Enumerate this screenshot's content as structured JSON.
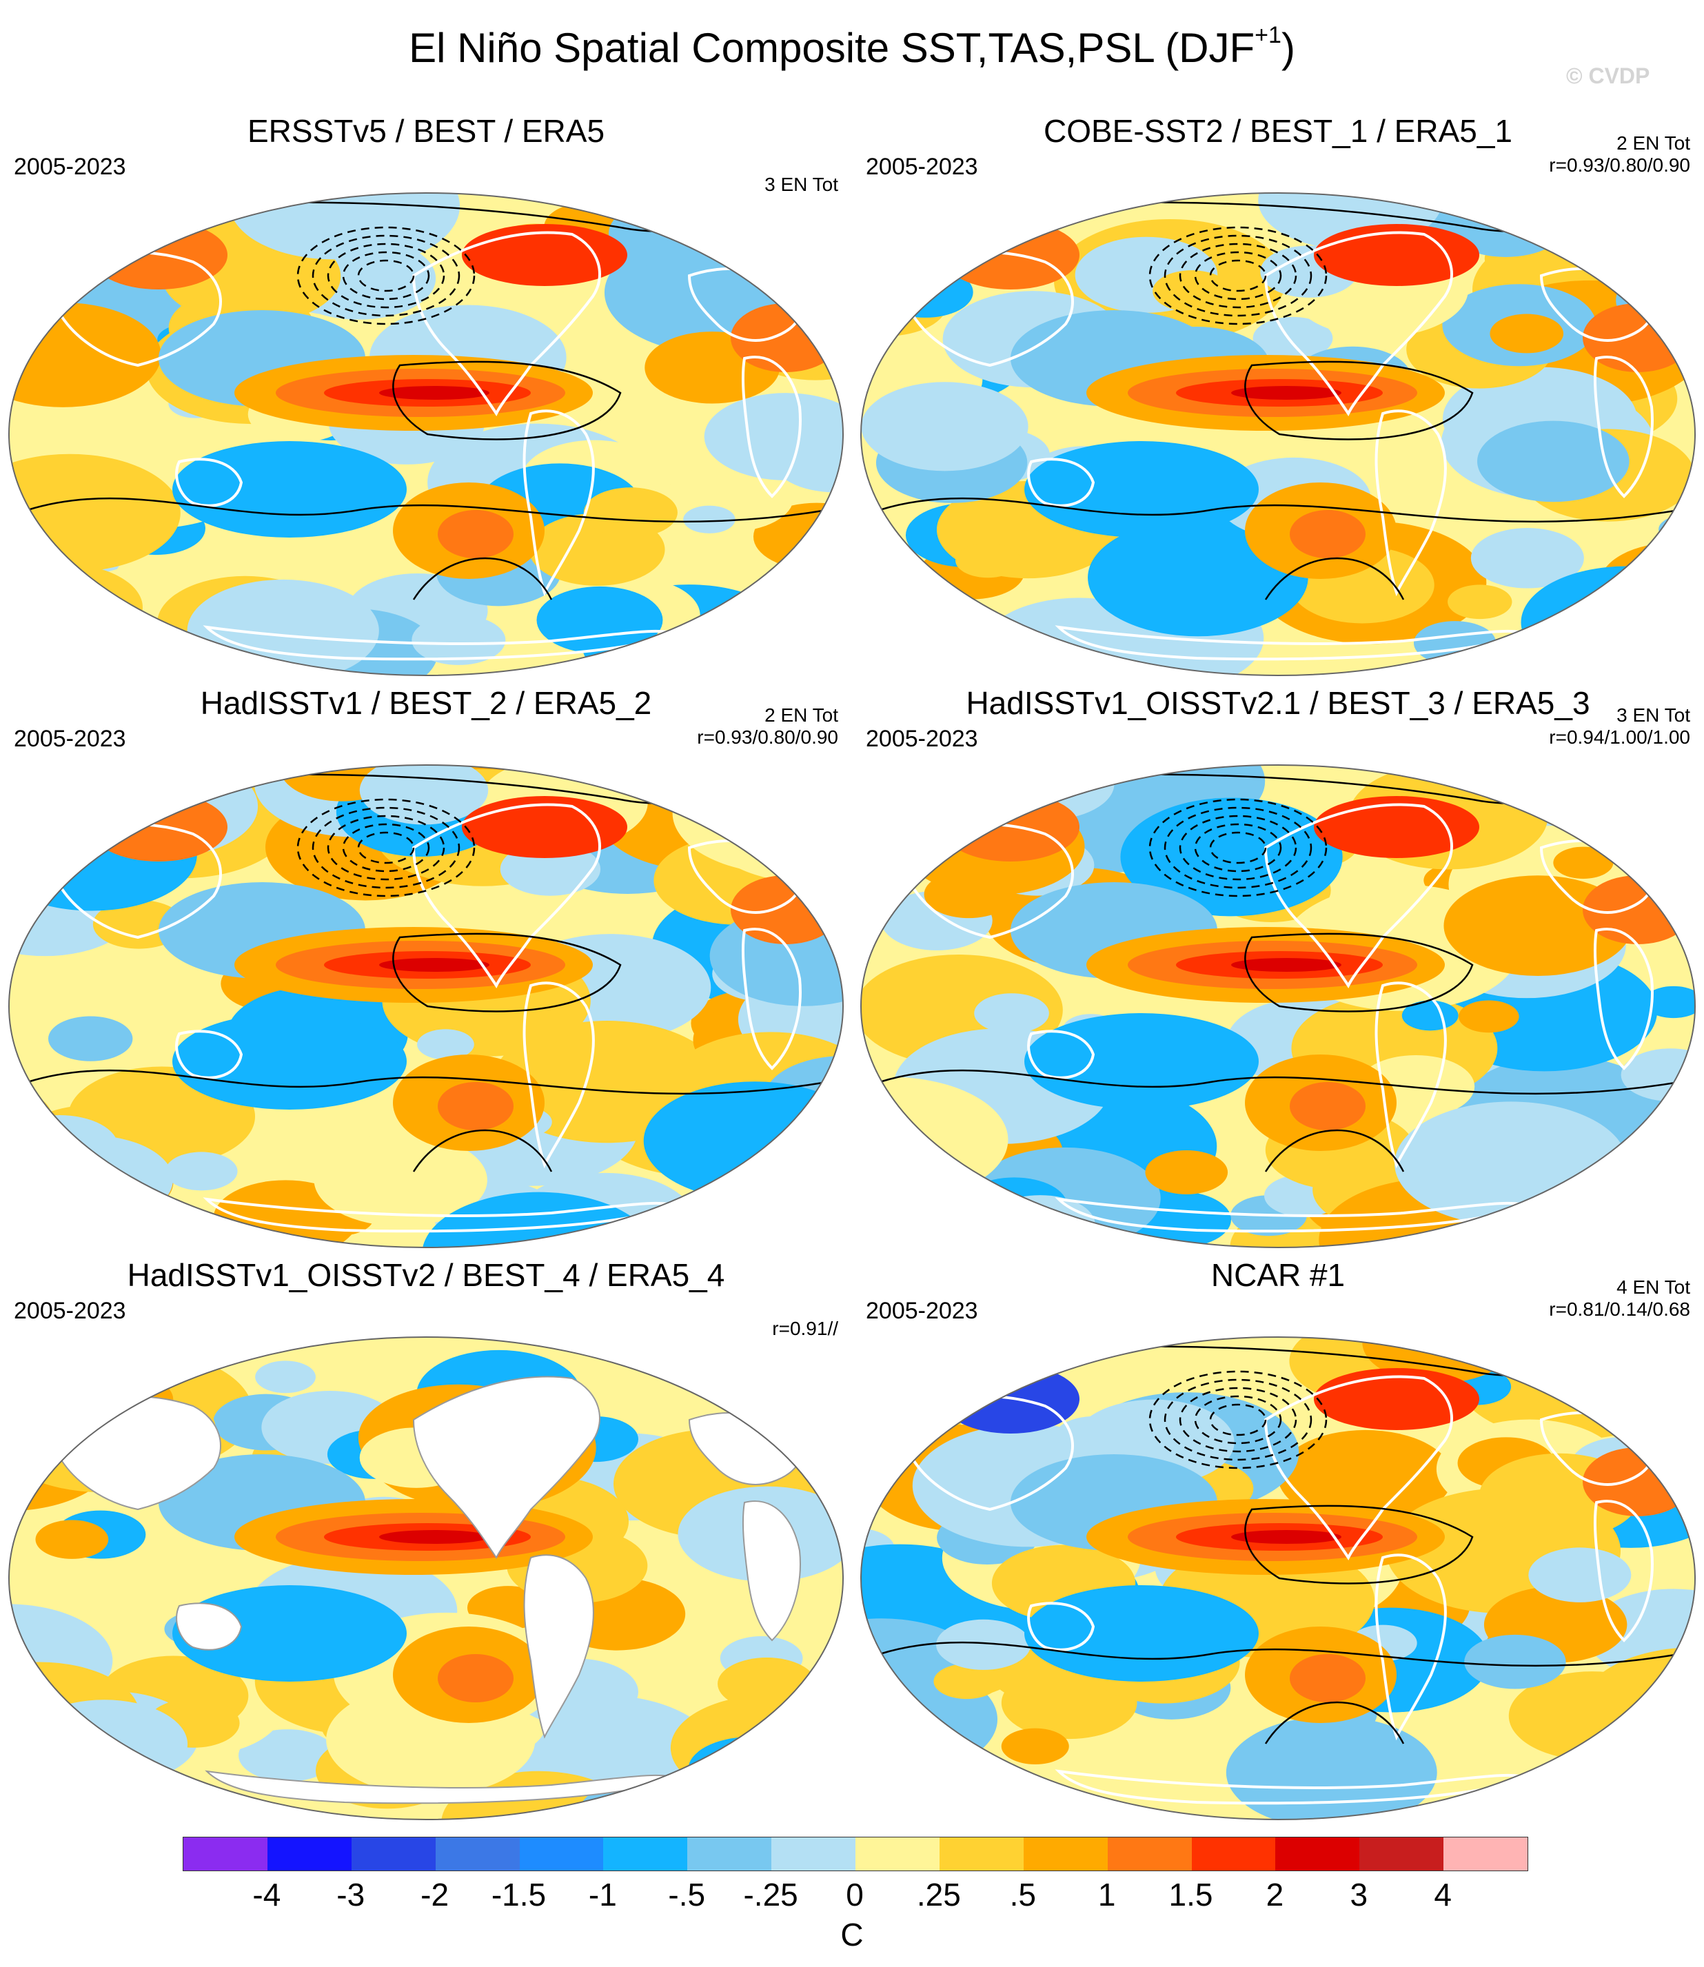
{
  "header": {
    "title": "El Niño Spatial Composite SST,TAS,PSL (DJF",
    "title_sup": "+1",
    "title_end": ")",
    "credit": "© CVDP"
  },
  "panels": [
    {
      "title": "ERSSTv5 / BEST / ERA5",
      "years": "2005-2023",
      "stats": "3 EN Tot",
      "missing": false,
      "variant": 0
    },
    {
      "title": "COBE-SST2 / BEST_1 / ERA5_1",
      "years": "2005-2023",
      "stats": "2 EN Tot\nr=0.93/0.80/0.90",
      "missing": false,
      "variant": 1
    },
    {
      "title": "HadISSTv1 / BEST_2 / ERA5_2",
      "years": "2005-2023",
      "stats": "2 EN Tot\nr=0.93/0.80/0.90",
      "missing": false,
      "variant": 2
    },
    {
      "title": "HadISSTv1_OISSTv2.1 / BEST_3 / ERA5_3",
      "years": "2005-2023",
      "stats": "3 EN Tot\nr=0.94/1.00/1.00",
      "missing": false,
      "variant": 3
    },
    {
      "title": "HadISSTv1_OISSTv2 / BEST_4 / ERA5_4",
      "years": "2005-2023",
      "stats": "r=0.91//",
      "missing": true,
      "variant": 4
    },
    {
      "title": "NCAR #1",
      "years": "2005-2023",
      "stats": "4 EN Tot\nr=0.81/0.14/0.68",
      "missing": false,
      "variant": 5
    }
  ],
  "colorbar": {
    "colors": [
      "#8b2cf0",
      "#1414ff",
      "#2846e6",
      "#3c78e6",
      "#1e8cff",
      "#14b4ff",
      "#78c8f0",
      "#b4e0f4",
      "#fff598",
      "#ffd232",
      "#ffaa00",
      "#ff7814",
      "#ff3200",
      "#dc0000",
      "#c81e1e",
      "#ffb4b4"
    ],
    "ticks": [
      "-4",
      "-3",
      "-2",
      "-1.5",
      "-1",
      "-.5",
      "-.25",
      "0",
      ".25",
      ".5",
      "1",
      "1.5",
      "2",
      "3",
      "4"
    ],
    "unit": "C"
  }
}
